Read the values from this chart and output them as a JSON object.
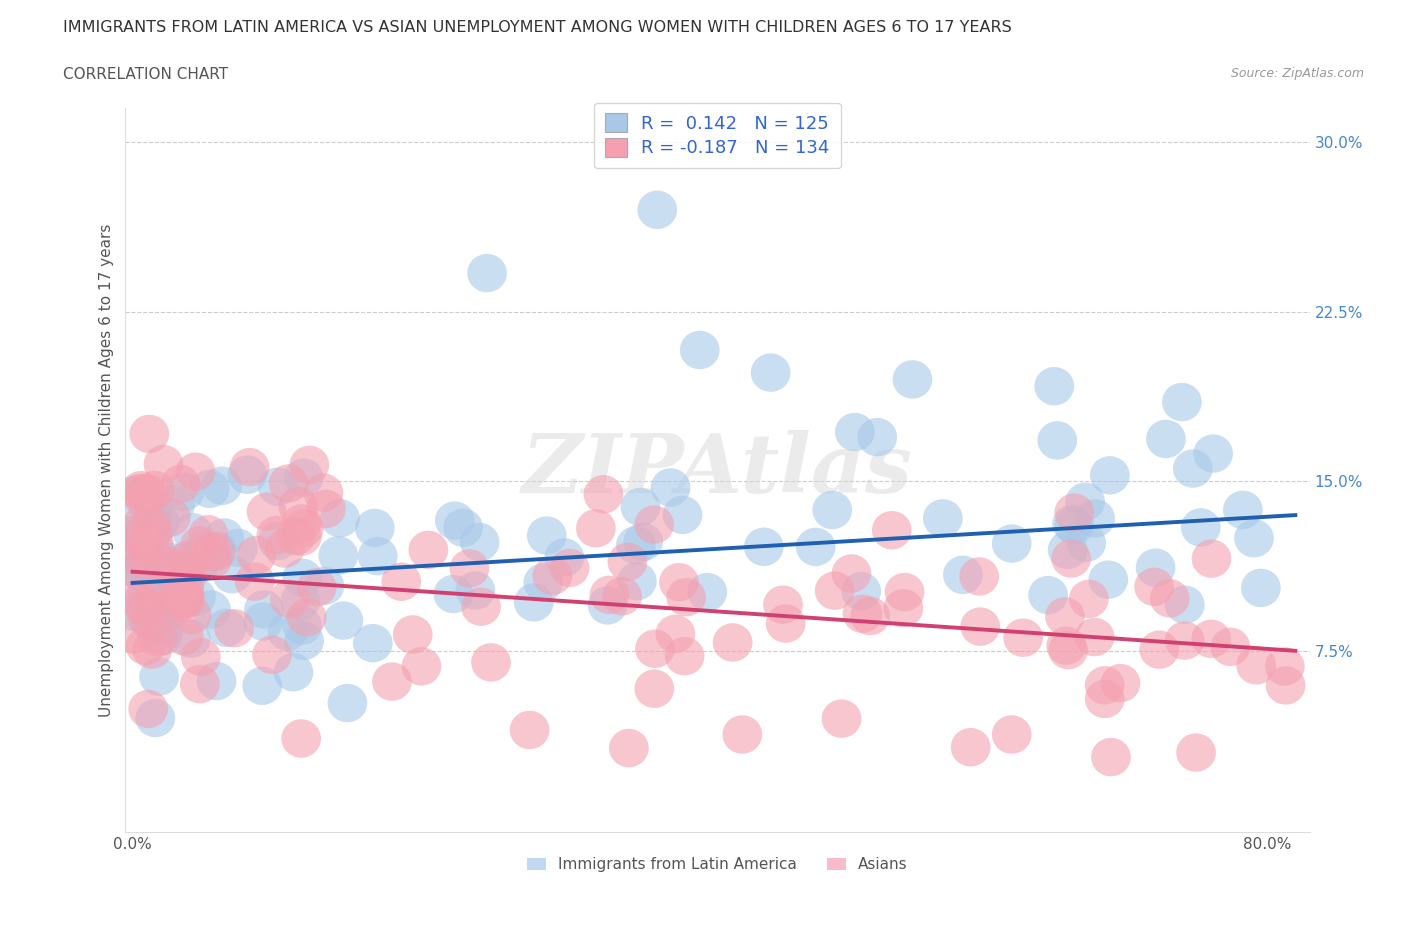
{
  "title": "IMMIGRANTS FROM LATIN AMERICA VS ASIAN UNEMPLOYMENT AMONG WOMEN WITH CHILDREN AGES 6 TO 17 YEARS",
  "subtitle": "CORRELATION CHART",
  "source": "Source: ZipAtlas.com",
  "ylabel": "Unemployment Among Women with Children Ages 6 to 17 years",
  "blue_color": "#a8c8e8",
  "pink_color": "#f4a0b0",
  "blue_line_color": "#2060b0",
  "pink_line_color": "#d04070",
  "blue_R": 0.142,
  "blue_N": 125,
  "pink_R": -0.187,
  "pink_N": 134,
  "legend_label_blue": "Immigrants from Latin America",
  "legend_label_pink": "Asians",
  "watermark": "ZIPAtlas",
  "background_color": "#ffffff",
  "grid_color": "#cccccc",
  "title_color": "#333333",
  "ytick_color": "#4488cc",
  "label_color": "#555555",
  "legend_text_color": "#3366cc"
}
